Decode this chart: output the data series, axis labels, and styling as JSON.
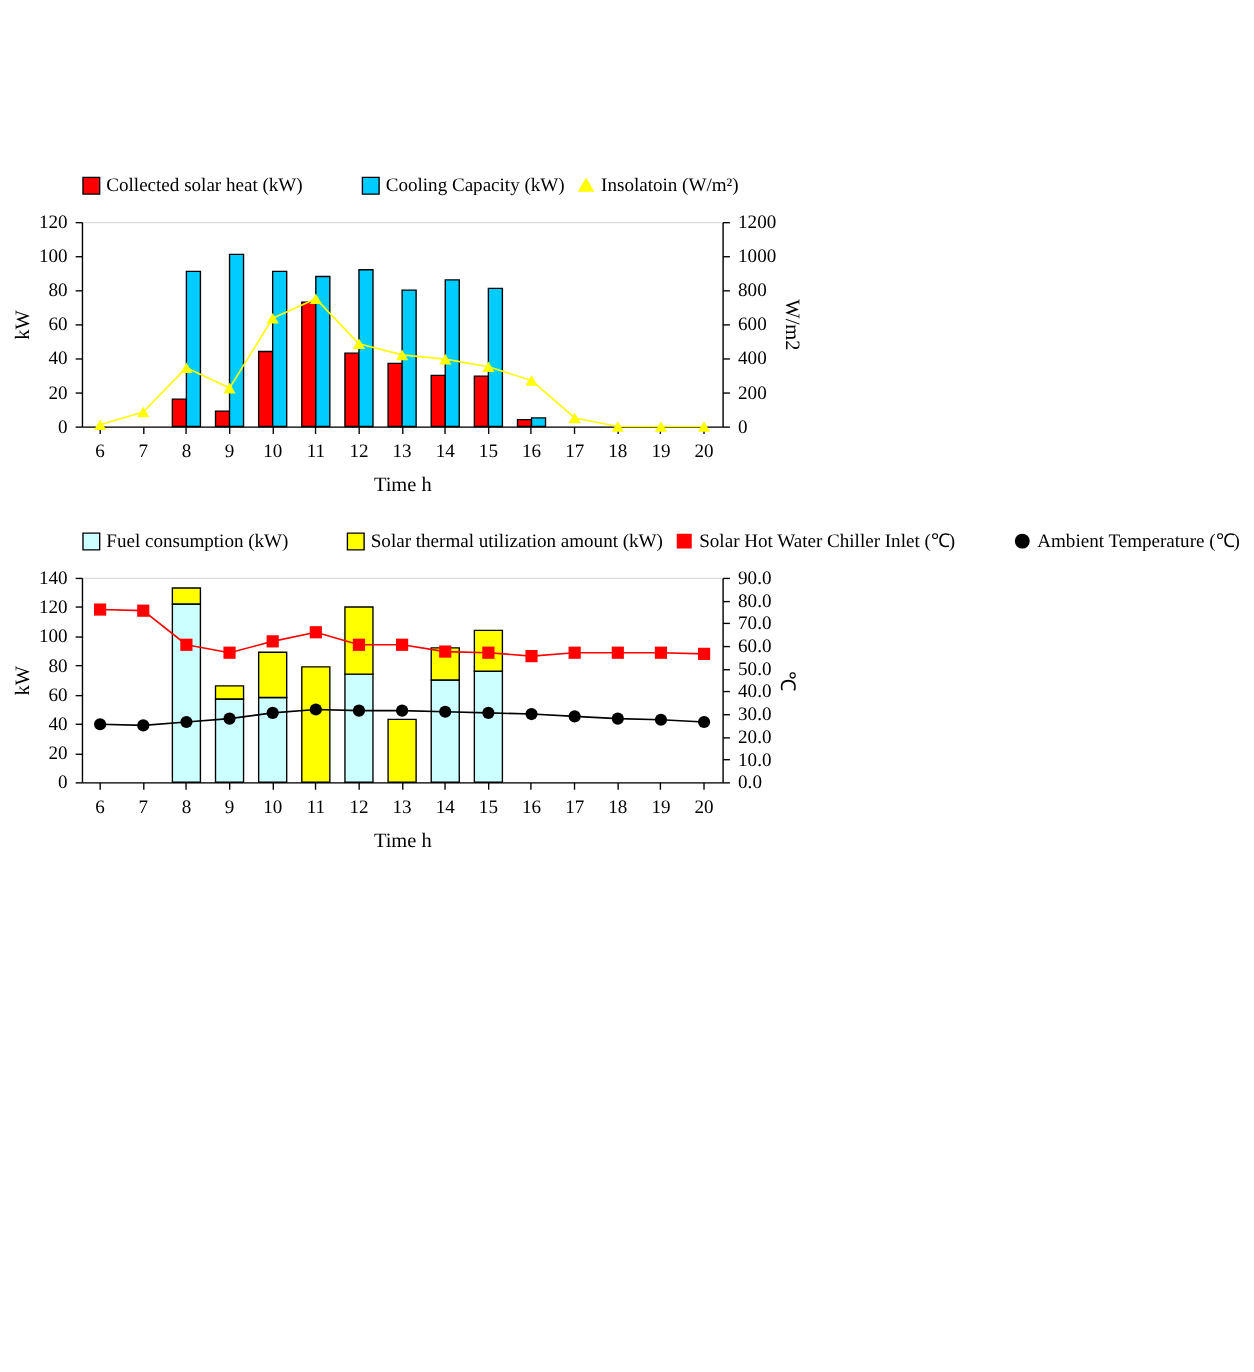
{
  "chart_data": [
    {
      "type": "bar",
      "categories": [
        "6",
        "7",
        "8",
        "9",
        "10",
        "11",
        "12",
        "13",
        "14",
        "15",
        "16",
        "17",
        "18",
        "19",
        "20"
      ],
      "xlabel": "Time h",
      "ylabel": "kW",
      "y2label": "W/m2",
      "ylim": [
        0,
        120
      ],
      "yticks": [
        0,
        20,
        40,
        60,
        80,
        100,
        120
      ],
      "y2lim": [
        0,
        1200
      ],
      "y2ticks": [
        0,
        200,
        400,
        600,
        800,
        1000,
        1200
      ],
      "legend": "top",
      "grid": false,
      "series": [
        {
          "name": "Collected solar heat (kW)",
          "color": "#ff0000",
          "values": [
            null,
            null,
            16,
            9,
            44,
            73,
            43,
            37,
            30,
            29.5,
            4,
            null,
            null,
            null,
            null
          ]
        },
        {
          "name": "Cooling Capacity (kW)",
          "color": "#00ccff",
          "values": [
            null,
            null,
            91,
            101,
            91,
            88,
            92,
            80,
            86,
            81,
            5,
            null,
            null,
            null,
            null
          ]
        },
        {
          "name": "Insolatoin (W/m²)",
          "type": "line",
          "axis": "y2",
          "marker": "triangle",
          "line_style": "solid",
          "color": "#ffff00",
          "values": [
            10,
            85,
            345,
            225,
            635,
            750,
            485,
            420,
            395,
            350,
            270,
            50,
            0,
            0,
            0
          ]
        }
      ]
    },
    {
      "type": "bar",
      "stacked": true,
      "categories": [
        "6",
        "7",
        "8",
        "9",
        "10",
        "11",
        "12",
        "13",
        "14",
        "15",
        "16",
        "17",
        "18",
        "19",
        "20"
      ],
      "xlabel": "Time h",
      "ylabel": "kW",
      "y2label": "℃",
      "ylim": [
        0,
        140
      ],
      "yticks": [
        0,
        20,
        40,
        60,
        80,
        100,
        120,
        140
      ],
      "y2lim": [
        0,
        90
      ],
      "y2ticks": [
        {
          "value": 0,
          "label": "0.0"
        },
        {
          "value": 10,
          "label": "10.0"
        },
        {
          "value": 20,
          "label": "20.0"
        },
        {
          "value": 30,
          "label": "30.0"
        },
        {
          "value": 40,
          "label": "40.0"
        },
        {
          "value": 50,
          "label": "50.0"
        },
        {
          "value": 60,
          "label": "60.0"
        },
        {
          "value": 70,
          "label": "70.0"
        },
        {
          "value": 80,
          "label": "80.0"
        },
        {
          "value": 90,
          "label": "90.0"
        }
      ],
      "legend": "top",
      "grid": false,
      "series": [
        {
          "name": "Fuel consumption (kW)",
          "color": "#ccffff",
          "values": [
            null,
            null,
            122,
            57,
            58,
            null,
            74,
            null,
            70,
            76,
            null,
            null,
            null,
            null,
            null
          ]
        },
        {
          "name": "Solar thermal utilization amount (kW)",
          "color": "#ffff00",
          "values": [
            null,
            null,
            11,
            9,
            31,
            79,
            46,
            43,
            22,
            28,
            null,
            null,
            null,
            null,
            null
          ]
        },
        {
          "name": "Solar Hot Water Chiller Inlet (℃)",
          "type": "line",
          "axis": "y2",
          "marker": "square",
          "line_style": "solid",
          "color": "#ff0000",
          "values": [
            76,
            75.5,
            60.5,
            57,
            62,
            66,
            60.5,
            60.5,
            57.5,
            57,
            55.5,
            57,
            57,
            57,
            56.5
          ]
        },
        {
          "name": "Ambient Temperature (℃)",
          "type": "line",
          "axis": "y2",
          "marker": "circle",
          "line_style": "solid",
          "color": "#000000",
          "values": [
            25.5,
            25,
            26.5,
            28,
            30.5,
            32,
            31.5,
            31.5,
            31,
            30.5,
            30,
            29,
            28,
            27.5,
            26.5
          ]
        }
      ]
    }
  ]
}
